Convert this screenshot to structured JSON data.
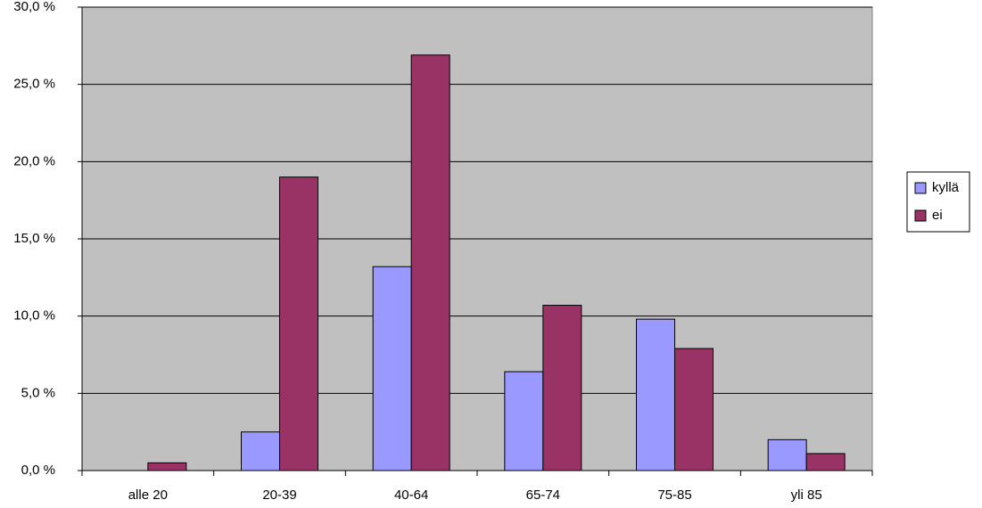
{
  "chart_data": {
    "type": "bar",
    "categories": [
      "alle 20",
      "20-39",
      "40-64",
      "65-74",
      "75-85",
      "yli 85"
    ],
    "series": [
      {
        "name": "kyllä",
        "color": "#9999ff",
        "values": [
          0,
          2.5,
          13.2,
          6.4,
          9.8,
          2.0
        ]
      },
      {
        "name": "ei",
        "color": "#993366",
        "values": [
          0.5,
          19.0,
          26.9,
          10.7,
          7.9,
          1.1
        ]
      }
    ],
    "ylim": [
      0,
      30
    ],
    "yticks": [
      {
        "value": 0,
        "label": "0,0 %"
      },
      {
        "value": 5,
        "label": "5,0 %"
      },
      {
        "value": 10,
        "label": "10,0 %"
      },
      {
        "value": 15,
        "label": "15,0 %"
      },
      {
        "value": 20,
        "label": "20,0 %"
      },
      {
        "value": 25,
        "label": "25,0 %"
      },
      {
        "value": 30,
        "label": "30,0 %"
      }
    ],
    "grid": true,
    "legend": "right"
  }
}
